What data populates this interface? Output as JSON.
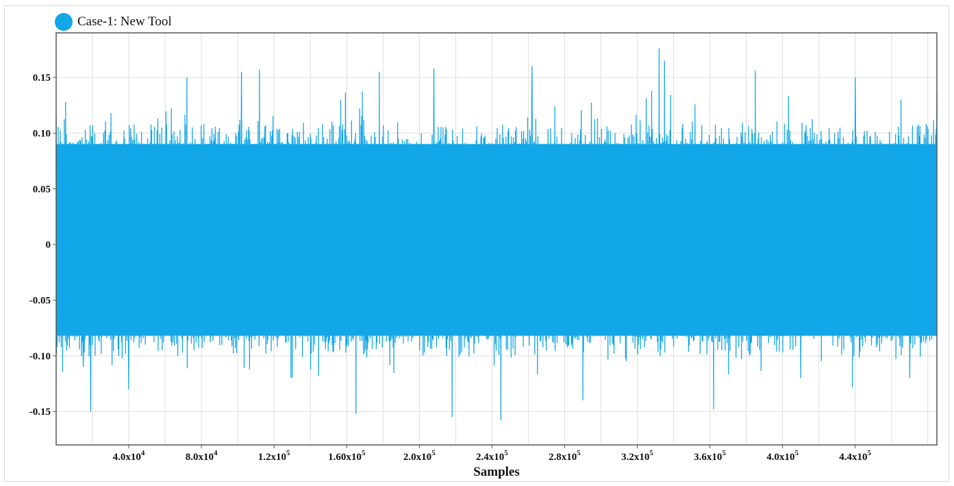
{
  "chart_data": {
    "type": "line",
    "title": "",
    "xlabel": "Samples",
    "ylabel": "",
    "xlim": [
      0,
      485000
    ],
    "ylim": [
      -0.18,
      0.19
    ],
    "grid": true,
    "legend_position": "top-left",
    "series": [
      {
        "name": "Case-1: New Tool",
        "color": "#12a7e8",
        "typical_envelope": [
          -0.1,
          0.11
        ],
        "peak_max": 0.176,
        "peak_min": -0.163,
        "x": [
          0,
          15000,
          19000,
          40000,
          72000,
          102000,
          112000,
          130000,
          165000,
          178000,
          208000,
          218000,
          245000,
          262000,
          290000,
          332000,
          335000,
          362000,
          385000,
          410000,
          440000,
          470000,
          485000
        ],
        "values": [
          0.115,
          -0.11,
          -0.15,
          -0.13,
          0.15,
          0.155,
          0.157,
          -0.12,
          -0.152,
          0.155,
          0.158,
          -0.155,
          -0.158,
          0.16,
          -0.14,
          0.176,
          0.165,
          -0.148,
          0.156,
          -0.12,
          0.15,
          -0.12,
          0.137
        ]
      }
    ],
    "x_ticks": [
      {
        "value": 40000,
        "mantissa": "4.0x10",
        "exp": "4"
      },
      {
        "value": 80000,
        "mantissa": "8.0x10",
        "exp": "4"
      },
      {
        "value": 120000,
        "mantissa": "1.2x10",
        "exp": "5"
      },
      {
        "value": 160000,
        "mantissa": "1.60x10",
        "exp": "5"
      },
      {
        "value": 200000,
        "mantissa": "2.0x10",
        "exp": "5"
      },
      {
        "value": 240000,
        "mantissa": "2.4x10",
        "exp": "5"
      },
      {
        "value": 280000,
        "mantissa": "2.8x10",
        "exp": "5"
      },
      {
        "value": 320000,
        "mantissa": "3.2x10",
        "exp": "5"
      },
      {
        "value": 360000,
        "mantissa": "3.6x10",
        "exp": "5"
      },
      {
        "value": 400000,
        "mantissa": "4.0x10",
        "exp": "5"
      },
      {
        "value": 440000,
        "mantissa": "4.4x10",
        "exp": "5"
      }
    ],
    "y_ticks": [
      {
        "value": 0.15,
        "label": "0.15"
      },
      {
        "value": 0.1,
        "label": "0.10"
      },
      {
        "value": 0.05,
        "label": "0.05"
      },
      {
        "value": 0,
        "label": "0"
      },
      {
        "value": -0.05,
        "label": "-0.05"
      },
      {
        "value": -0.1,
        "label": "-0.10"
      },
      {
        "value": -0.15,
        "label": "-0.15"
      }
    ]
  }
}
